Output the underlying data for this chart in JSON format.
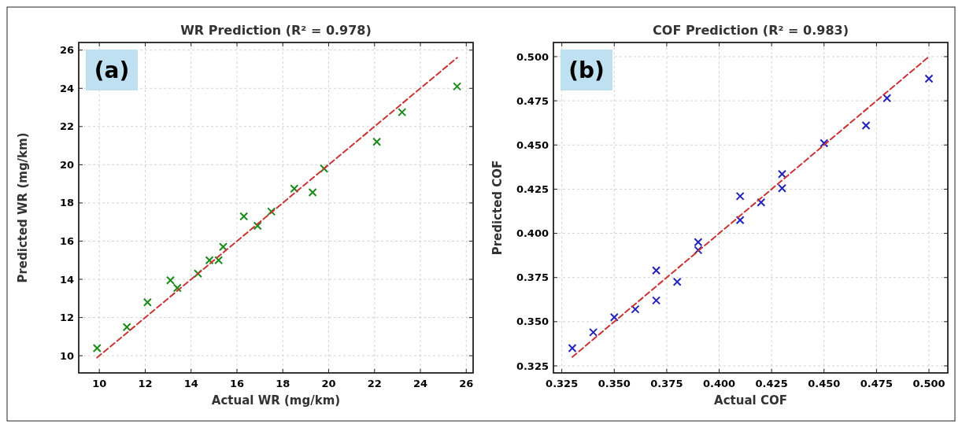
{
  "chart_data": [
    {
      "type": "scatter",
      "title": "WR Prediction (R² = 0.978)",
      "xlabel": "Actual WR (mg/km)",
      "ylabel": "Predicted WR (mg/km)",
      "annotations": [
        "(a)"
      ],
      "xlim": [
        9.1,
        26.3
      ],
      "ylim": [
        9.1,
        26.4
      ],
      "xticks": [
        10,
        12,
        14,
        16,
        18,
        20,
        22,
        24,
        26
      ],
      "yticks": [
        10,
        12,
        14,
        16,
        18,
        20,
        22,
        24,
        26
      ],
      "grid": true,
      "series": [
        {
          "type": "scatter",
          "color": "#1a8a1a",
          "marker": "cross",
          "x": [
            9.9,
            11.2,
            12.1,
            13.1,
            13.4,
            14.3,
            14.8,
            15.2,
            15.4,
            16.3,
            16.9,
            17.5,
            18.5,
            19.3,
            19.8,
            22.1,
            23.2,
            25.6
          ],
          "values": [
            10.4,
            11.5,
            12.8,
            13.95,
            13.55,
            14.3,
            15.0,
            15.0,
            15.7,
            17.3,
            16.8,
            17.55,
            18.75,
            18.55,
            19.8,
            21.2,
            22.75,
            24.1
          ]
        },
        {
          "type": "line",
          "color": "#cc3333",
          "line_style": "dashed",
          "marker": "none",
          "x": [
            9.9,
            25.6
          ],
          "values": [
            9.9,
            25.6
          ]
        }
      ]
    },
    {
      "type": "scatter",
      "title": "COF Prediction (R² = 0.983)",
      "xlabel": "Actual COF",
      "ylabel": "Predicted COF",
      "annotations": [
        "(b)"
      ],
      "xlim": [
        0.321,
        0.509
      ],
      "ylim": [
        0.321,
        0.508
      ],
      "xticks": [
        0.325,
        {
          "value": 0.35,
          "label": "0.350"
        },
        0.375,
        {
          "value": 0.4,
          "label": "0.400"
        },
        0.425,
        {
          "value": 0.45,
          "label": "0.450"
        },
        0.475,
        {
          "value": 0.5,
          "label": "0.500"
        }
      ],
      "yticks": [
        0.325,
        {
          "value": 0.35,
          "label": "0.350"
        },
        0.375,
        {
          "value": 0.4,
          "label": "0.400"
        },
        0.425,
        {
          "value": 0.45,
          "label": "0.450"
        },
        0.475,
        {
          "value": 0.5,
          "label": "0.500"
        }
      ],
      "grid": true,
      "series": [
        {
          "type": "scatter",
          "color": "#2222b8",
          "marker": "cross",
          "x": [
            0.33,
            0.34,
            0.35,
            0.36,
            0.37,
            0.37,
            0.38,
            0.39,
            0.39,
            0.41,
            0.41,
            0.42,
            0.43,
            0.43,
            0.45,
            0.47,
            0.48,
            0.5
          ],
          "values": [
            0.335,
            0.344,
            0.3525,
            0.357,
            0.379,
            0.362,
            0.3725,
            0.395,
            0.3905,
            0.421,
            0.4075,
            0.4175,
            0.4335,
            0.4255,
            0.451,
            0.461,
            0.4765,
            0.4875
          ]
        },
        {
          "type": "line",
          "color": "#cc3333",
          "line_style": "dashed",
          "marker": "none",
          "x": [
            0.33,
            0.5
          ],
          "values": [
            0.33,
            0.5
          ]
        }
      ]
    }
  ]
}
